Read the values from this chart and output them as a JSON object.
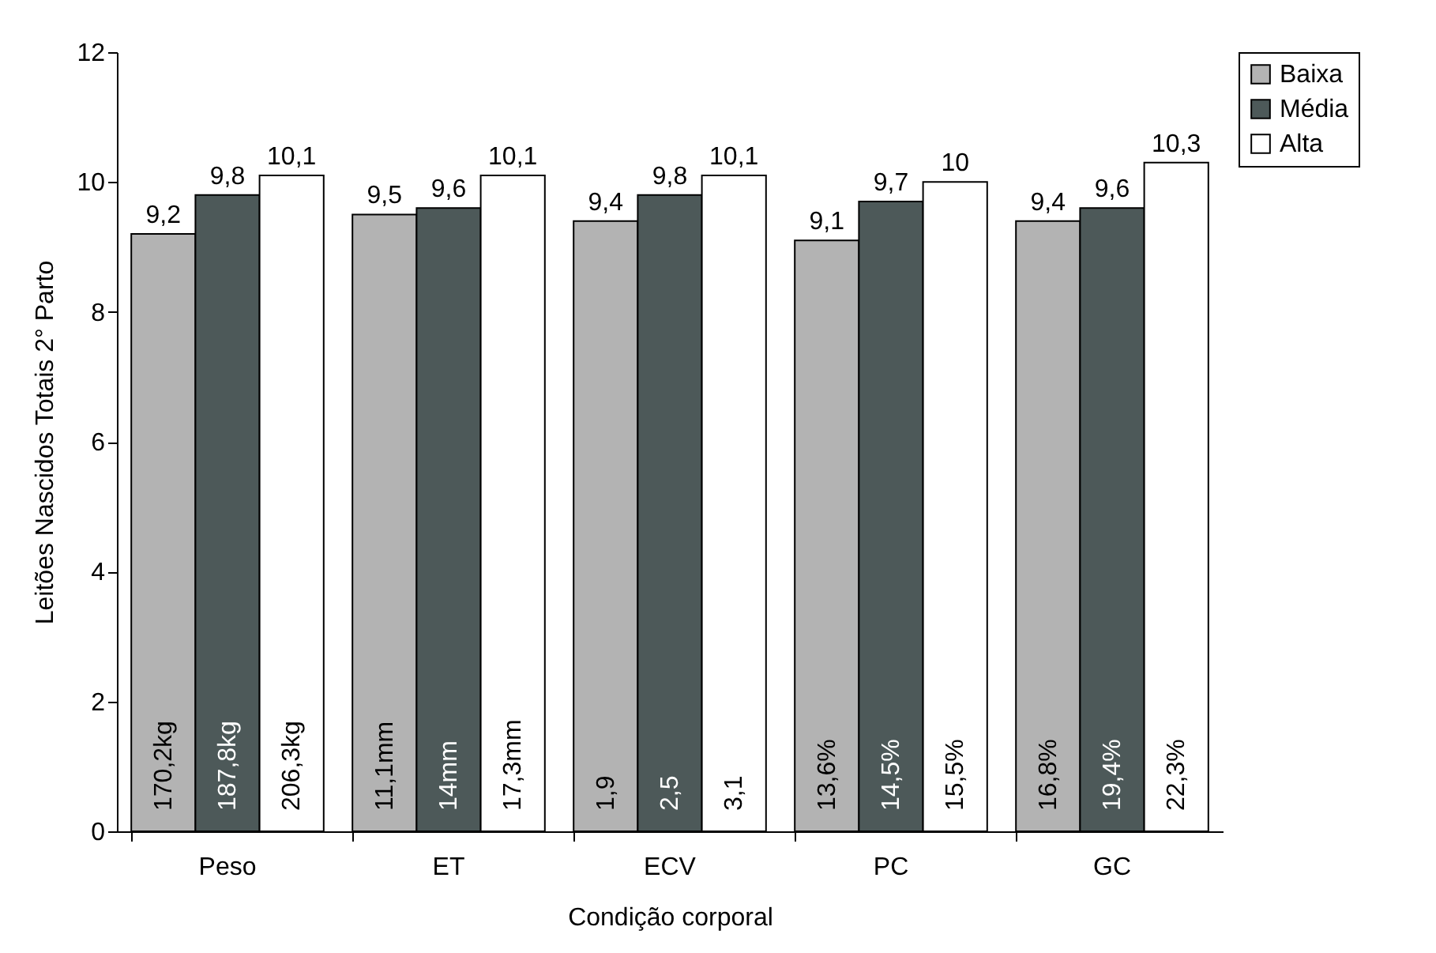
{
  "chart_data": {
    "type": "bar",
    "xlabel": "Condição corporal",
    "ylabel": "Leitões Nascidos Totais 2° Parto",
    "categories": [
      "Peso",
      "ET",
      "ECV",
      "PC",
      "GC"
    ],
    "series": [
      {
        "name": "Baixa",
        "color": "#b3b3b3",
        "values": [
          9.2,
          9.5,
          9.4,
          9.1,
          9.4
        ],
        "value_labels": [
          "9,2",
          "9,5",
          "9,4",
          "9,1",
          "9,4"
        ]
      },
      {
        "name": "Média",
        "color": "#4d5959",
        "values": [
          9.8,
          9.6,
          9.8,
          9.7,
          9.6
        ],
        "value_labels": [
          "9,8",
          "9,6",
          "9,8",
          "9,7",
          "9,6"
        ]
      },
      {
        "name": "Alta",
        "color": "#ffffff",
        "values": [
          10.1,
          10.1,
          10.1,
          10,
          10.3
        ],
        "value_labels": [
          "10,1",
          "10,1",
          "10,1",
          "10",
          "10,3"
        ]
      }
    ],
    "ylim": [
      0,
      12
    ],
    "yticks": [
      0,
      2,
      4,
      6,
      8,
      10,
      12
    ],
    "grid": false,
    "legend": "right",
    "annotations": [
      "170,2kg",
      "187,8kg",
      "206,3kg",
      "11,1mm",
      "14mm",
      "17,3mm",
      "1,9",
      "2,5",
      "3,1",
      "13,6%",
      "14,5%",
      "15,5%",
      "16,8%",
      "19,4%",
      "22,3%"
    ]
  }
}
